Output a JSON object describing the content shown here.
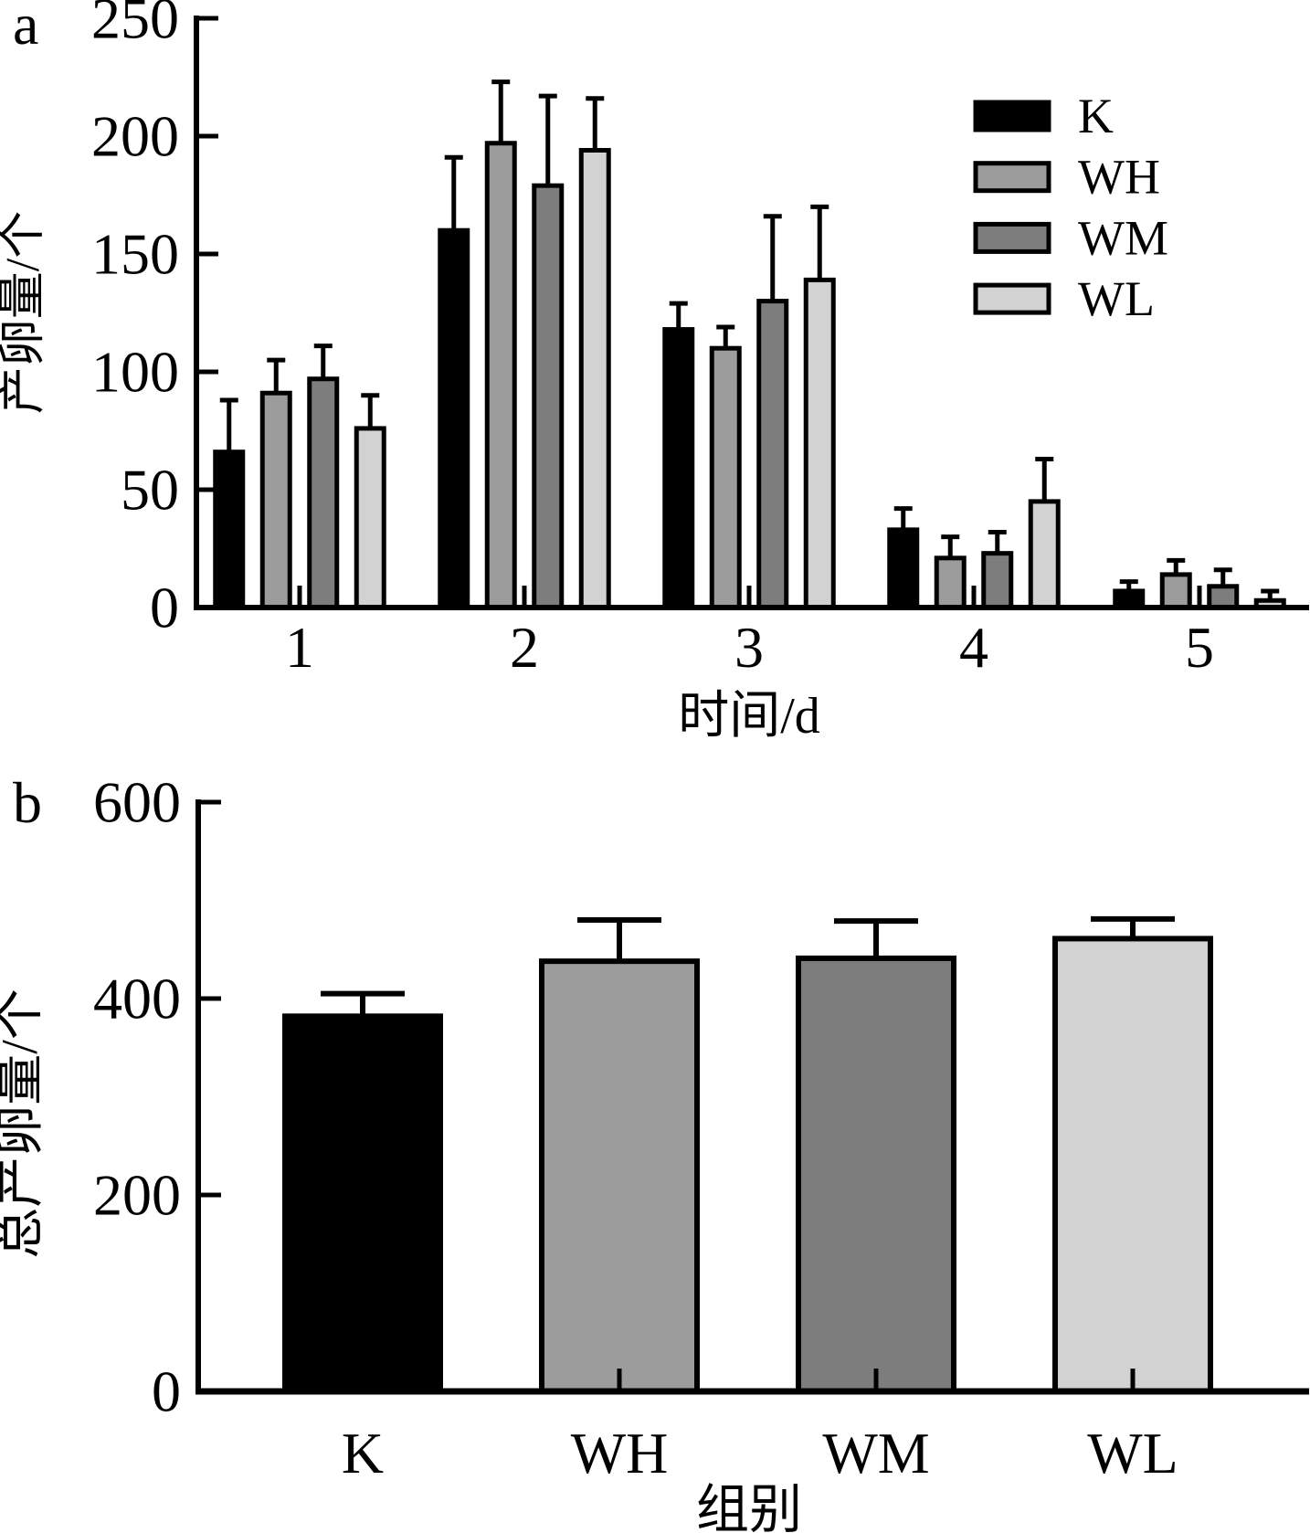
{
  "figure": {
    "panel_a_label": "a",
    "panel_b_label": "b"
  },
  "chart_data": [
    {
      "type": "bar",
      "panel_label": "a",
      "title": "",
      "xlabel": "时间/d",
      "ylabel": "产卵量/个",
      "categories": [
        "1",
        "2",
        "3",
        "4",
        "5"
      ],
      "series": [
        {
          "name": "K",
          "color": "#000000",
          "values": [
            66,
            160,
            118,
            33,
            7
          ],
          "errors_plus": [
            22,
            31,
            11,
            9,
            4
          ]
        },
        {
          "name": "WH",
          "color": "#9c9c9c",
          "values": [
            91,
            197,
            110,
            21,
            14
          ],
          "errors_plus": [
            14,
            26,
            9,
            9,
            6
          ]
        },
        {
          "name": "WM",
          "color": "#7d7d7d",
          "values": [
            97,
            179,
            130,
            23,
            9
          ],
          "errors_plus": [
            14,
            38,
            36,
            9,
            7
          ]
        },
        {
          "name": "WL",
          "color": "#d2d2d2",
          "values": [
            76,
            194,
            139,
            45,
            3
          ],
          "errors_plus": [
            14,
            22,
            31,
            18,
            4
          ]
        }
      ],
      "ylim": [
        0,
        250
      ],
      "yticks": [
        0,
        50,
        100,
        150,
        200,
        250
      ],
      "legend_position": "upper right",
      "grid": false,
      "error_bars": "upper only",
      "bar_edge_color": "#000000"
    },
    {
      "type": "bar",
      "panel_label": "b",
      "title": "",
      "xlabel": "组别",
      "ylabel": "总产卵量/个",
      "categories": [
        "K",
        "WH",
        "WM",
        "WL"
      ],
      "series": [
        {
          "name": "总产卵量",
          "values": [
            382,
            438,
            441,
            461
          ],
          "errors_plus": [
            23,
            42,
            38,
            20
          ],
          "colors": [
            "#000000",
            "#9c9c9c",
            "#7d7d7d",
            "#d2d2d2"
          ]
        }
      ],
      "ylim": [
        0,
        600
      ],
      "yticks": [
        0,
        200,
        400,
        600
      ],
      "legend_position": "none",
      "grid": false,
      "error_bars": "upper only",
      "bar_edge_color": "#000000"
    }
  ]
}
